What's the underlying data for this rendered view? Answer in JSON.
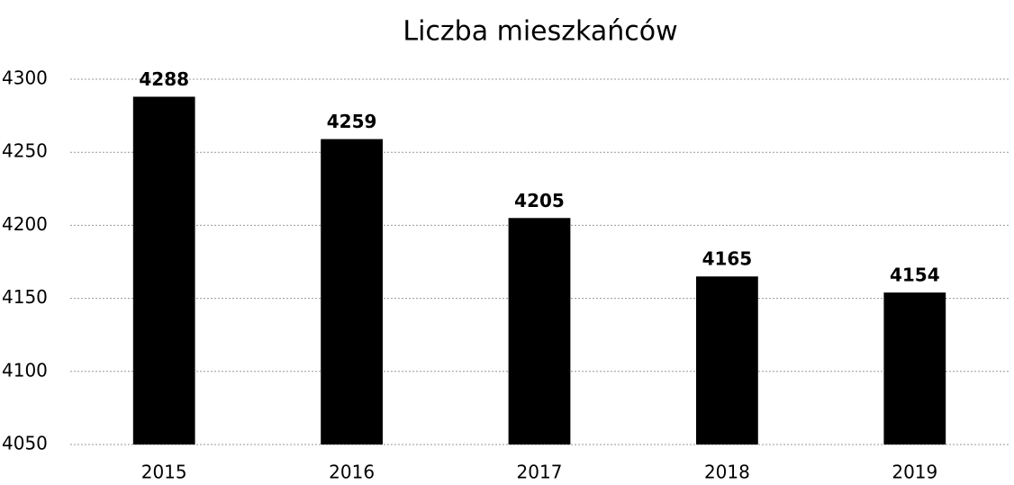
{
  "chart_data": {
    "type": "bar",
    "title": "Liczba mieszkańców",
    "categories": [
      "2015",
      "2016",
      "2017",
      "2018",
      "2019"
    ],
    "values": [
      4288,
      4259,
      4205,
      4165,
      4154
    ],
    "color": "#000000",
    "ylim": [
      4050,
      4300
    ],
    "yticks": [
      4050,
      4100,
      4150,
      4200,
      4250,
      4300
    ],
    "grid": true
  }
}
